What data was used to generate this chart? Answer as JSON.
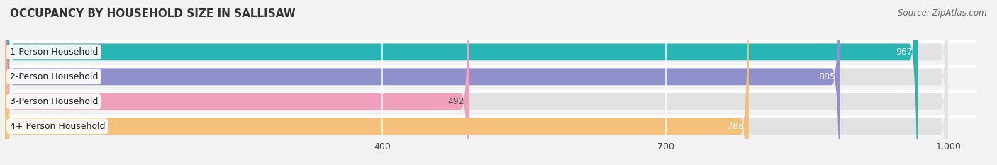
{
  "title": "OCCUPANCY BY HOUSEHOLD SIZE IN SALLISAW",
  "source": "Source: ZipAtlas.com",
  "categories": [
    "1-Person Household",
    "2-Person Household",
    "3-Person Household",
    "4+ Person Household"
  ],
  "values": [
    967,
    885,
    492,
    788
  ],
  "bar_colors": [
    "#2ab5b5",
    "#9090cc",
    "#f0a0bc",
    "#f5c07a"
  ],
  "bar_edge_colors": [
    "#1a9595",
    "#7070aa",
    "#e08095",
    "#e0a060"
  ],
  "value_label_colors": [
    "white",
    "white",
    "#555555",
    "white"
  ],
  "xlim": [
    0,
    1050
  ],
  "xmin": 0,
  "xmax": 1000,
  "xticks": [
    400,
    700,
    1000
  ],
  "background_color": "#f2f2f2",
  "bar_bg_color": "#e2e2e2",
  "bar_sep_color": "#ffffff",
  "title_fontsize": 11,
  "source_fontsize": 8.5,
  "tick_fontsize": 9,
  "label_fontsize": 9,
  "value_fontsize": 9
}
